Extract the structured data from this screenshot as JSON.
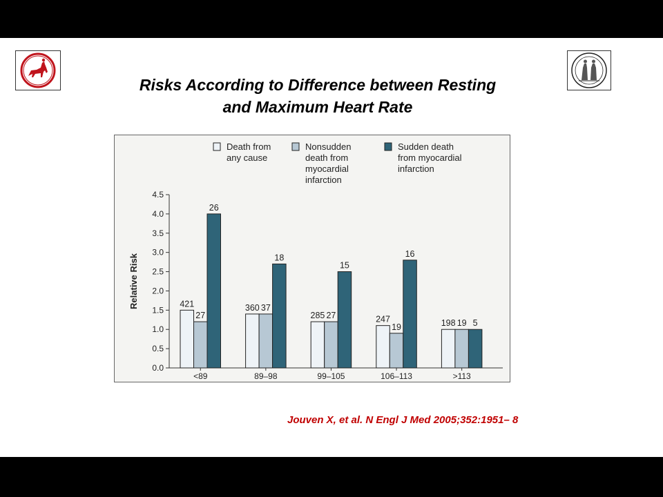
{
  "slide": {
    "title_line1": "Risks According to Difference between Resting",
    "title_line2": "and Maximum Heart Rate",
    "citation": "Jouven X, et al. N Engl J Med 2005;352:1951– 8",
    "logo_left_icon": "centaur-emblem",
    "logo_right_icon": "classical-figures-seal",
    "colors": {
      "background": "#ffffff",
      "letterbox": "#000000",
      "citation": "#c00000",
      "logo_red": "#c0141c"
    }
  },
  "chart_data": {
    "type": "bar",
    "ylabel": "Relative Risk",
    "xlabel": "",
    "categories": [
      "<89",
      "89–98",
      "99–105",
      "106–113",
      ">113"
    ],
    "ylim": [
      0,
      4.5
    ],
    "yticks": [
      "0.0",
      "0.5",
      "1.0",
      "1.5",
      "2.0",
      "2.5",
      "3.0",
      "3.5",
      "4.0",
      "4.5"
    ],
    "series": [
      {
        "legend": [
          "Death from",
          "any cause"
        ],
        "color": "#eef3f7",
        "values": [
          1.5,
          1.4,
          1.2,
          1.1,
          1.0
        ],
        "labels": [
          "421",
          "360",
          "285",
          "247",
          "198"
        ]
      },
      {
        "legend": [
          "Nonsudden",
          "death from",
          "myocardial",
          "infarction"
        ],
        "color": "#b7c8d4",
        "values": [
          1.2,
          1.4,
          1.2,
          0.9,
          1.0
        ],
        "labels": [
          "27",
          "37",
          "27",
          "19",
          "19"
        ]
      },
      {
        "legend": [
          "Sudden death",
          "from myocardial",
          "infarction"
        ],
        "color": "#2f6478",
        "values": [
          4.0,
          2.7,
          2.5,
          2.8,
          1.0
        ],
        "labels": [
          "26",
          "18",
          "15",
          "16",
          "5"
        ]
      }
    ],
    "legend_position": "top",
    "grid": false
  }
}
